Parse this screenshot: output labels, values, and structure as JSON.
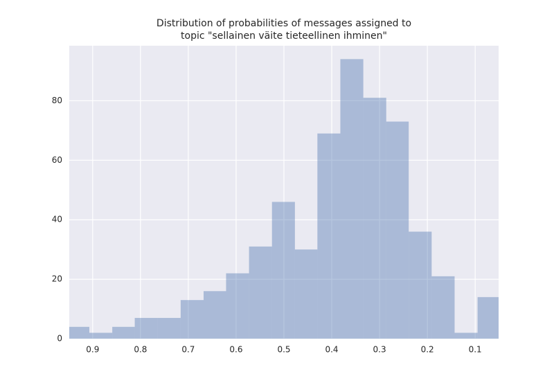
{
  "chart_data": {
    "type": "histogram",
    "title": [
      "Distribution of probabilities of messages assigned to",
      "topic \"sellainen väite tieteellinen ihminen\""
    ],
    "bins": [
      0.955,
      0.907,
      0.859,
      0.812,
      0.764,
      0.716,
      0.668,
      0.621,
      0.573,
      0.525,
      0.477,
      0.43,
      0.382,
      0.334,
      0.286,
      0.239,
      0.191,
      0.143,
      0.095,
      0.048
    ],
    "counts": [
      4,
      2,
      4,
      7,
      7,
      13,
      16,
      22,
      31,
      46,
      30,
      69,
      94,
      81,
      73,
      36,
      21,
      2,
      14
    ],
    "color": "#4c72b0",
    "xlim": [
      0.949,
      0.051
    ],
    "xticks": [
      0.9,
      0.8,
      0.7,
      0.6,
      0.5,
      0.4,
      0.3,
      0.2,
      0.1
    ],
    "ylim": [
      0,
      98.5
    ],
    "yticks": [
      0,
      20,
      40,
      60,
      80
    ],
    "grid": true
  }
}
